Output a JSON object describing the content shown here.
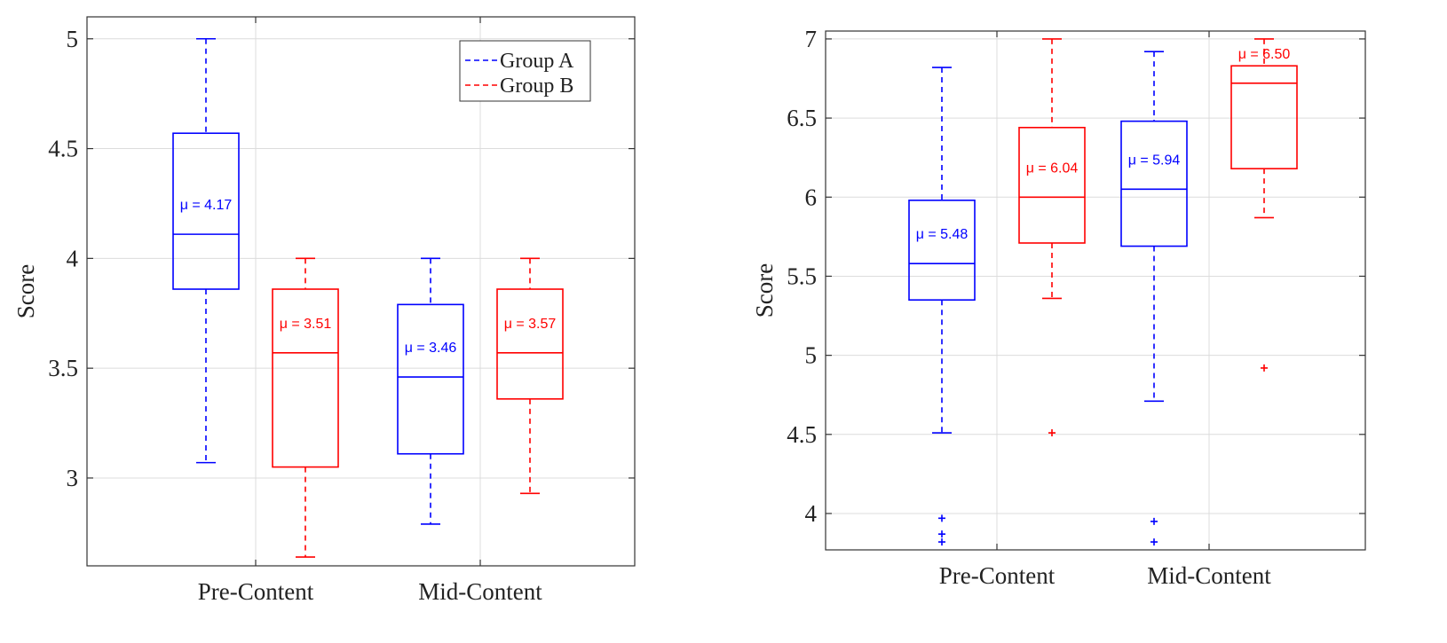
{
  "colors": {
    "group_a": "#0000ff",
    "group_b": "#ff0000",
    "grid": "#dcdcdc",
    "axis": "#333333"
  },
  "chart_data": [
    {
      "type": "box",
      "ylabel": "Score",
      "xlabel": "",
      "ylim": [
        2.6,
        5.1
      ],
      "yticks": [
        3,
        3.5,
        4,
        4.5,
        5
      ],
      "ytick_labels": [
        "3",
        "3.5",
        "4",
        "4.5",
        "5"
      ],
      "categories": [
        "Pre-Content",
        "Mid-Content"
      ],
      "grid": true,
      "legend": {
        "position": "top-right",
        "entries": [
          "Group A",
          "Group B"
        ]
      },
      "series": [
        {
          "name": "Group A",
          "color": "#0000ff",
          "boxes": [
            {
              "category": "Pre-Content",
              "whisker_low": 3.07,
              "q1": 3.86,
              "median": 4.11,
              "q3": 4.57,
              "whisker_high": 5.0,
              "mean_label": "μ = 4.17",
              "outliers": []
            },
            {
              "category": "Mid-Content",
              "whisker_low": 2.79,
              "q1": 3.11,
              "median": 3.46,
              "q3": 3.79,
              "whisker_high": 4.0,
              "mean_label": "μ = 3.46",
              "outliers": []
            }
          ]
        },
        {
          "name": "Group B",
          "color": "#ff0000",
          "boxes": [
            {
              "category": "Pre-Content",
              "whisker_low": 2.64,
              "q1": 3.05,
              "median": 3.57,
              "q3": 3.86,
              "whisker_high": 4.0,
              "mean_label": "μ = 3.51",
              "outliers": []
            },
            {
              "category": "Mid-Content",
              "whisker_low": 2.93,
              "q1": 3.36,
              "median": 3.57,
              "q3": 3.86,
              "whisker_high": 4.0,
              "mean_label": "μ = 3.57",
              "outliers": []
            }
          ]
        }
      ]
    },
    {
      "type": "box",
      "ylabel": "Score",
      "xlabel": "",
      "ylim": [
        3.77,
        7.05
      ],
      "yticks": [
        4,
        4.5,
        5,
        5.5,
        6,
        6.5,
        7
      ],
      "ytick_labels": [
        "4",
        "4.5",
        "5",
        "5.5",
        "6",
        "6.5",
        "7"
      ],
      "categories": [
        "Pre-Content",
        "Mid-Content"
      ],
      "grid": true,
      "series": [
        {
          "name": "Group A",
          "color": "#0000ff",
          "boxes": [
            {
              "category": "Pre-Content",
              "whisker_low": 4.51,
              "q1": 5.35,
              "median": 5.58,
              "q3": 5.98,
              "whisker_high": 6.82,
              "mean_label": "μ = 5.48",
              "outliers": [
                3.97,
                3.87,
                3.82
              ]
            },
            {
              "category": "Mid-Content",
              "whisker_low": 4.71,
              "q1": 5.69,
              "median": 6.05,
              "q3": 6.48,
              "whisker_high": 6.92,
              "mean_label": "μ = 5.94",
              "outliers": [
                3.95,
                3.82
              ]
            }
          ]
        },
        {
          "name": "Group B",
          "color": "#ff0000",
          "boxes": [
            {
              "category": "Pre-Content",
              "whisker_low": 5.36,
              "q1": 5.71,
              "median": 6.0,
              "q3": 6.44,
              "whisker_high": 7.0,
              "mean_label": "μ = 6.04",
              "outliers": [
                4.51
              ]
            },
            {
              "category": "Mid-Content",
              "whisker_low": 5.87,
              "q1": 6.18,
              "median": 6.72,
              "q3": 6.83,
              "whisker_high": 7.0,
              "mean_label": "μ = 6.50",
              "outliers": [
                4.92
              ]
            }
          ]
        }
      ]
    }
  ]
}
